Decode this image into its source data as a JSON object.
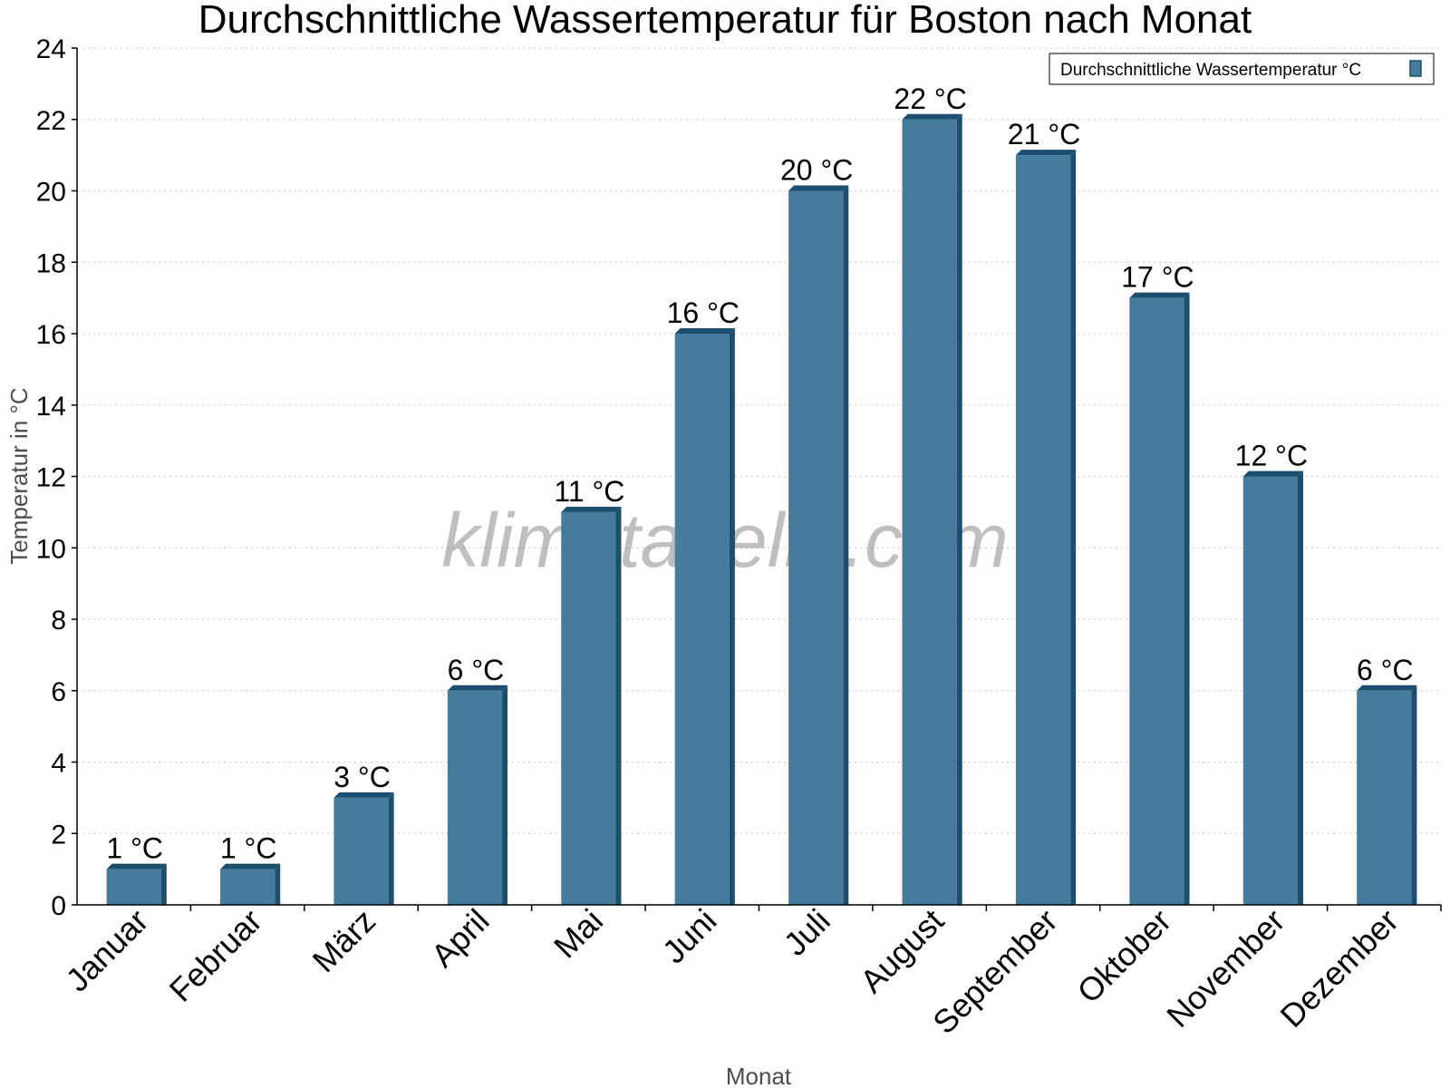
{
  "chart_data": {
    "type": "bar",
    "title": "Durchschnittliche Wassertemperatur für Boston nach Monat",
    "xlabel": "Monat",
    "ylabel": "Temperatur in °C",
    "categories": [
      "Januar",
      "Februar",
      "März",
      "April",
      "Mai",
      "Juni",
      "Juli",
      "August",
      "September",
      "Oktober",
      "November",
      "Dezember"
    ],
    "series": [
      {
        "name": "Durchschnittliche Wassertemperatur °C",
        "values": [
          1,
          1,
          3,
          6,
          11,
          16,
          20,
          22,
          21,
          17,
          12,
          6
        ],
        "labels": [
          "1 °C",
          "1 °C",
          "3 °C",
          "6 °C",
          "11 °C",
          "16 °C",
          "20 °C",
          "22 °C",
          "21 °C",
          "17 °C",
          "12 °C",
          "6 °C"
        ],
        "color": "#457b9d",
        "edge_color": "#1d4e6e"
      }
    ],
    "ylim": [
      0,
      24
    ],
    "yticks": [
      0,
      2,
      4,
      6,
      8,
      10,
      12,
      14,
      16,
      18,
      20,
      22,
      24
    ],
    "grid": true,
    "legend_position": "top-right"
  },
  "watermark": "klimatabelle.com"
}
